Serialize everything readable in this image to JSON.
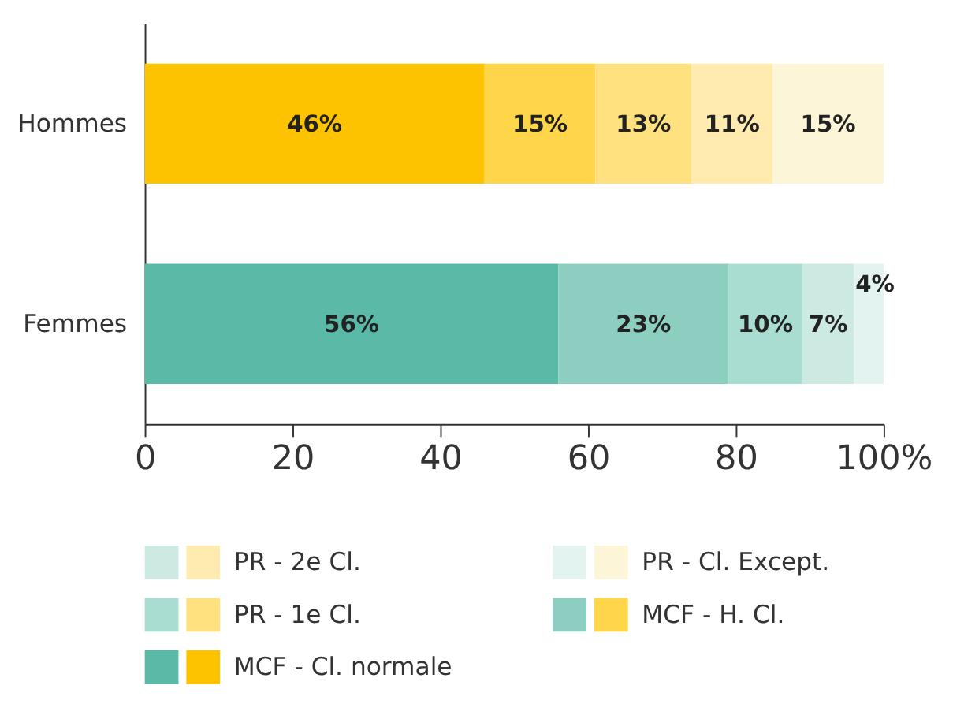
{
  "chart_data": {
    "type": "bar",
    "orientation": "horizontal",
    "stacked": true,
    "categories": [
      "Hommes",
      "Femmes"
    ],
    "series": [
      {
        "name": "MCF - Cl. normale",
        "colors": [
          "#fdc300",
          "#5bbaa7"
        ],
        "values": [
          46,
          56
        ],
        "value_labels": [
          "46%",
          "56%"
        ]
      },
      {
        "name": "MCF - H. Cl.",
        "colors": [
          "#ffd54a",
          "#8ccfc1"
        ],
        "values": [
          15,
          23
        ],
        "value_labels": [
          "15%",
          "23%"
        ]
      },
      {
        "name": "PR - 1e Cl.",
        "colors": [
          "#ffe17f",
          "#aaddd2"
        ],
        "values": [
          13,
          10
        ],
        "value_labels": [
          "13%",
          "10%"
        ]
      },
      {
        "name": "PR - 2e Cl.",
        "colors": [
          "#ffebb0",
          "#cce9e2"
        ],
        "values": [
          11,
          7
        ],
        "value_labels": [
          "11%",
          "7%"
        ]
      },
      {
        "name": "PR - Cl. Except.",
        "colors": [
          "#fdf5d8",
          "#e3f3ef"
        ],
        "values": [
          15,
          4
        ],
        "value_labels": [
          "15%",
          "4%"
        ]
      }
    ],
    "xlim": [
      0,
      100
    ],
    "xticks": [
      0,
      20,
      40,
      60,
      80,
      {
        "value": 100,
        "label": "100%"
      }
    ],
    "grid": false,
    "legend": "bottom"
  }
}
